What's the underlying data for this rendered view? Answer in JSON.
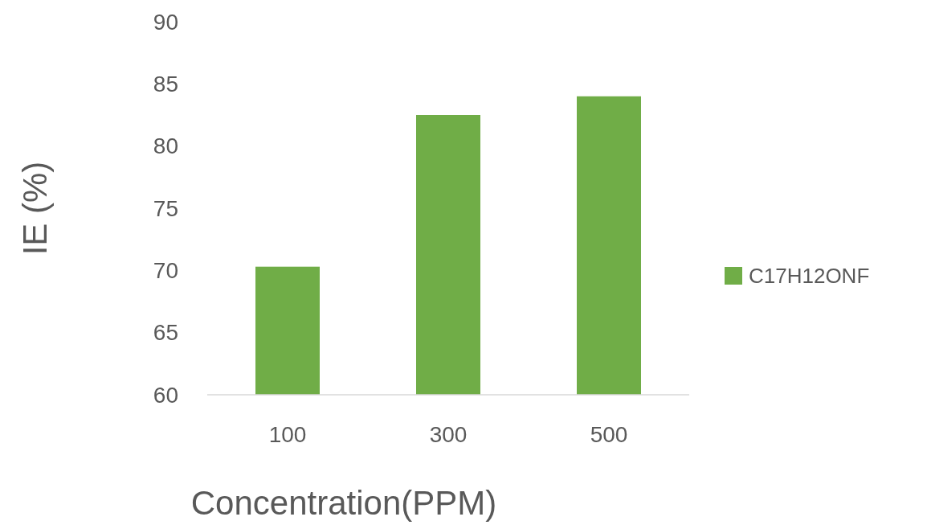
{
  "chart_data": {
    "type": "bar",
    "xlabel": "Concentration(PPM)",
    "ylabel": "IE (%)",
    "categories": [
      "100",
      "300",
      "500"
    ],
    "series": [
      {
        "name": "C17H12ONF",
        "color": "#70ad47",
        "values": [
          70.3,
          82.5,
          84.0
        ]
      }
    ],
    "ylim": [
      60,
      90
    ],
    "yticks": [
      60,
      65,
      70,
      75,
      80,
      85,
      90
    ],
    "grid": false,
    "legend": "right"
  }
}
